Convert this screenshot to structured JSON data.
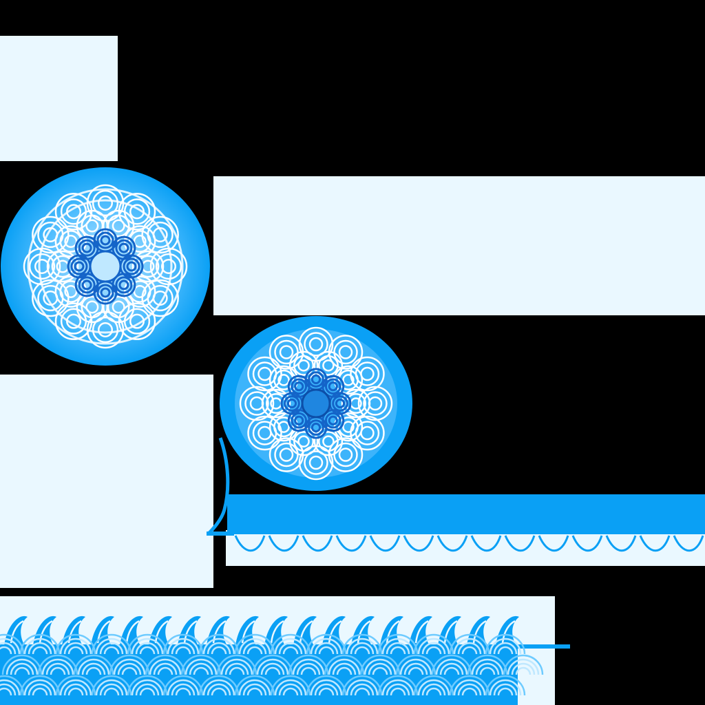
{
  "colors": {
    "background": "#000000",
    "panel": "#eaf8ff",
    "primary_blue": "#0aa0f5",
    "light_blue": "#6ecbff",
    "pale_blue": "#bfe8ff",
    "deep_blue": "#1464c8"
  },
  "elements": [
    "light-panel",
    "mandala-circle-icon",
    "wave-border-strip",
    "wave-pattern-band"
  ]
}
